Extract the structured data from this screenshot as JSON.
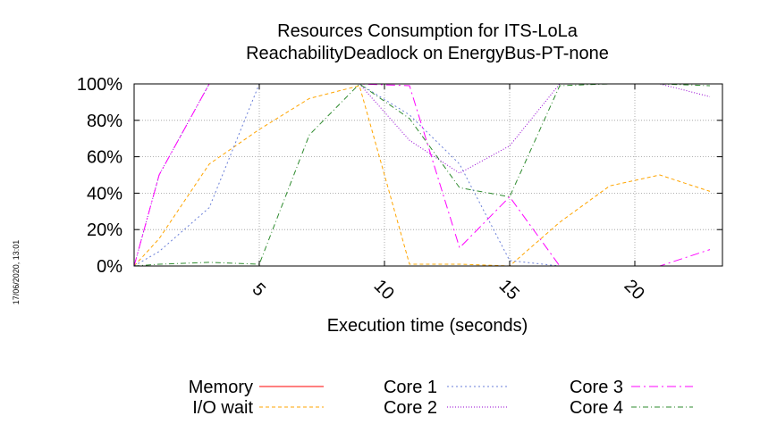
{
  "stamp": "17/06/2020, 13:01",
  "chart_data": {
    "type": "line",
    "title": [
      "Resources Consumption for ITS-LoLa",
      "ReachabilityDeadlock on EnergyBus-PT-none"
    ],
    "xlabel": "Execution time (seconds)",
    "ylabel": "",
    "xlim": [
      0,
      23.5
    ],
    "ylim": [
      0,
      100
    ],
    "xticks": [
      5,
      10,
      15,
      20
    ],
    "yticks": [
      0,
      20,
      40,
      60,
      80,
      100
    ],
    "ytick_labels": [
      "0%",
      "20%",
      "40%",
      "60%",
      "80%",
      "100%"
    ],
    "grid": true,
    "legend_position": "bottom",
    "series": [
      {
        "name": "Memory",
        "color": "#ff0000",
        "dash": "",
        "x": [],
        "y": []
      },
      {
        "name": "I/O wait",
        "color": "#ffa500",
        "dash": "4,3",
        "x": [
          0,
          1,
          3,
          5,
          7,
          9,
          11,
          13,
          15,
          17,
          19,
          21,
          23
        ],
        "y": [
          0,
          15,
          56,
          75,
          92,
          99,
          1,
          1,
          0,
          24,
          44,
          50,
          41
        ]
      },
      {
        "name": "Core 1",
        "color": "#6a7fd8",
        "dash": "2,3",
        "x": [
          0,
          1,
          3,
          5,
          7,
          9,
          11,
          13,
          15,
          17,
          19,
          21,
          23
        ],
        "y": [
          0,
          8,
          32,
          100,
          100,
          100,
          83,
          56,
          3,
          0,
          0,
          0,
          0
        ]
      },
      {
        "name": "Core 2",
        "color": "#9400d3",
        "dash": "1,2",
        "x": [
          0,
          1,
          3,
          5,
          7,
          9,
          11,
          13,
          15,
          17,
          19,
          21,
          23
        ],
        "y": [
          0,
          50,
          100,
          100,
          100,
          100,
          69,
          51,
          66,
          100,
          100,
          100,
          93
        ]
      },
      {
        "name": "Core 3",
        "color": "#ff00ff",
        "dash": "10,4,2,4",
        "x": [
          0,
          1,
          3,
          5,
          7,
          9,
          11,
          13,
          15,
          17,
          19,
          21,
          23
        ],
        "y": [
          0,
          50,
          100,
          100,
          100,
          100,
          99,
          10,
          38,
          0,
          0,
          0,
          9
        ]
      },
      {
        "name": "Core 4",
        "color": "#2e8b2e",
        "dash": "6,3,1,3",
        "x": [
          0,
          1,
          3,
          5,
          7,
          9,
          11,
          13,
          15,
          17,
          19,
          21,
          23
        ],
        "y": [
          0,
          1,
          2,
          1,
          72,
          100,
          81,
          43,
          38,
          99,
          100,
          100,
          99
        ]
      }
    ]
  }
}
